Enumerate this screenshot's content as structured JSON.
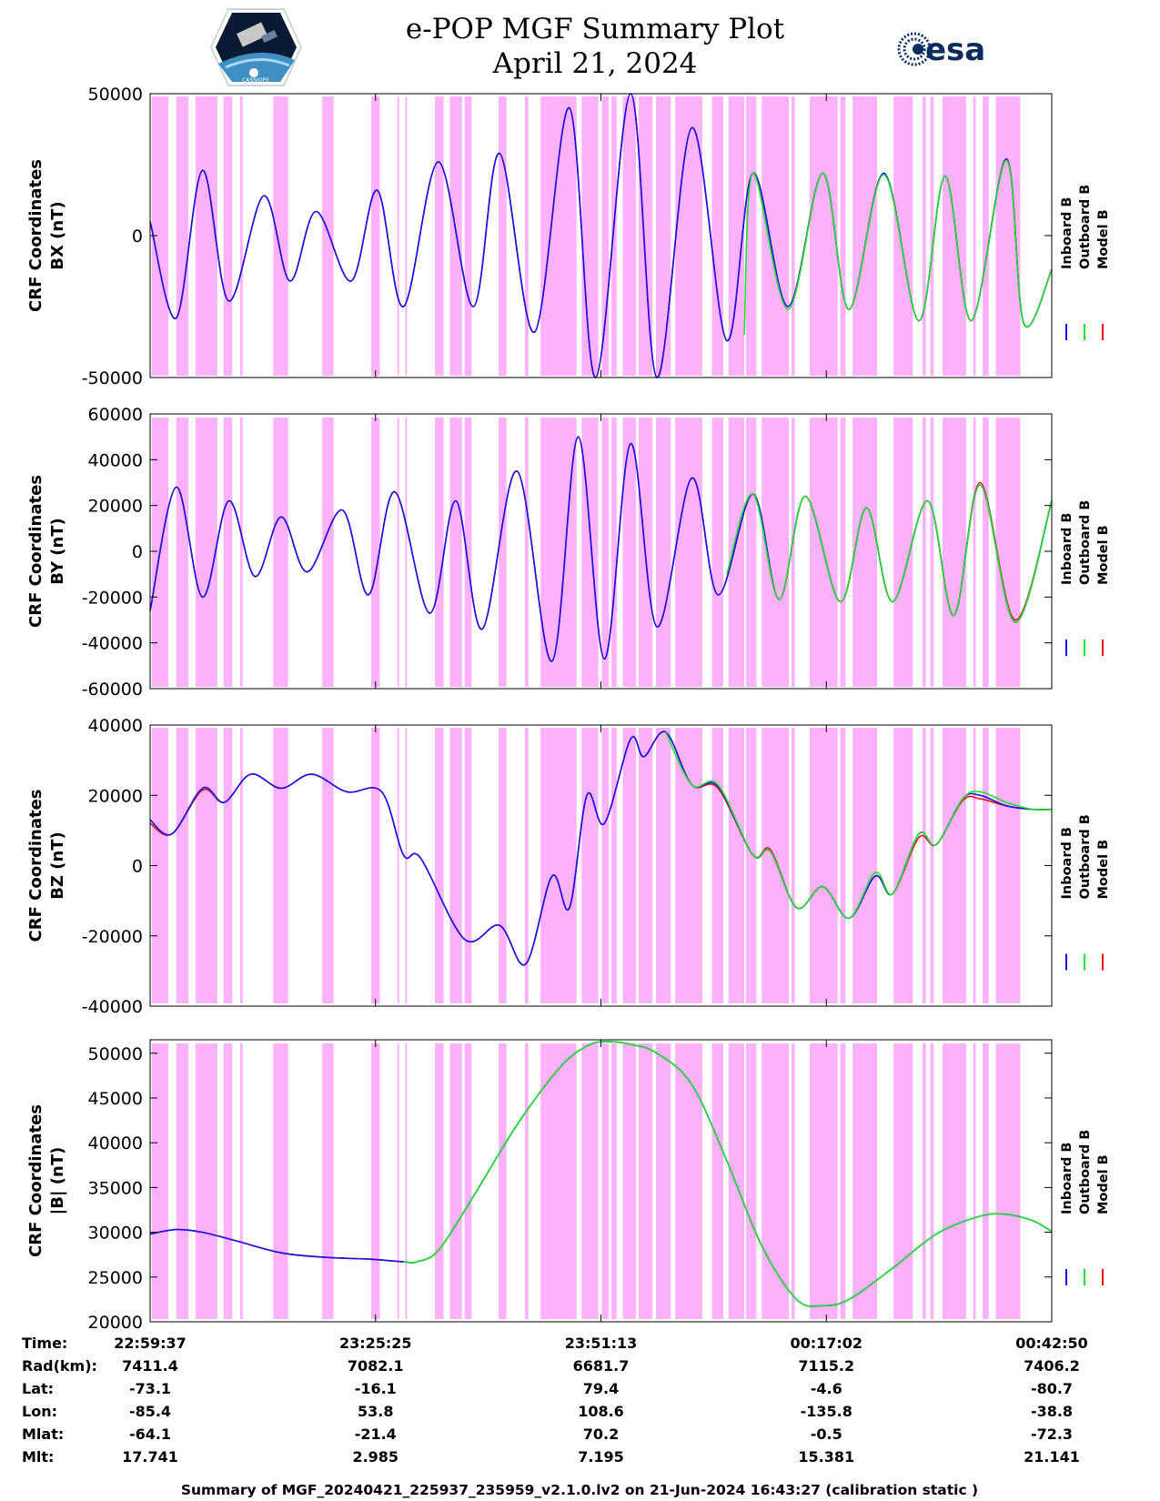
{
  "header": {
    "title": "e-POP MGF Summary Plot",
    "date": "April 21, 2024",
    "left_logo_text": "CASSIOPE",
    "right_logo_text": "esa"
  },
  "colors": {
    "shade": "#fdb2fb",
    "inboard": "#1010ee",
    "outboard": "#1ee02a",
    "model": "#ee1010"
  },
  "legend": {
    "labels": [
      "Inboard B",
      "Outboard B",
      "Model B"
    ],
    "series_colors": [
      "#1010ee",
      "#1ee02a",
      "#ee1010"
    ]
  },
  "chart_data": [
    {
      "type": "line",
      "ylabel": "CRF Coordinates\nBX (nT)",
      "ylim": [
        -50000,
        50000
      ],
      "yticks": [
        -50000,
        0,
        50000
      ],
      "x_range_minutes": [
        0,
        103.2
      ],
      "series": [
        {
          "name": "Inboard B",
          "color": "#1010ee",
          "x": [
            0,
            3,
            6,
            9,
            13,
            16,
            19,
            23,
            26,
            29,
            33,
            37,
            40,
            44,
            48,
            51,
            55,
            58,
            62,
            66,
            69,
            73,
            77,
            80,
            84,
            88,
            91,
            94,
            98,
            100,
            103.2
          ],
          "y": [
            5000,
            -29000,
            23000,
            -23000,
            14000,
            -16000,
            8500,
            -16000,
            16000,
            -25000,
            26000,
            -25000,
            29000,
            -34000,
            45000,
            -50000,
            50000,
            -50000,
            38000,
            -37000,
            22000,
            -25000,
            22000,
            -26000,
            22000,
            -30000,
            21000,
            -30000,
            27000,
            -31000,
            -12000
          ]
        },
        {
          "name": "Outboard B",
          "color": "#1ee02a",
          "x": [
            68,
            69,
            73,
            77,
            80,
            84,
            88,
            91,
            94,
            98,
            100,
            103.2
          ],
          "y": [
            -35000,
            22000,
            -26000,
            22000,
            -26000,
            21500,
            -30000,
            21000,
            -30000,
            26500,
            -31000,
            -12000
          ]
        },
        {
          "name": "Model B",
          "color": "#ee1010",
          "x": [
            0,
            3,
            6,
            9,
            13,
            16,
            19,
            23,
            26,
            29,
            33,
            37,
            40,
            44,
            48,
            51,
            55,
            58,
            62,
            66,
            69,
            73,
            77,
            80,
            84,
            88,
            91,
            94,
            98,
            100,
            103.2
          ],
          "y": [
            5000,
            -29000,
            23000,
            -23000,
            14000,
            -16000,
            8500,
            -16000,
            16000,
            -25000,
            26000,
            -25000,
            29000,
            -34000,
            45000,
            -50000,
            50000,
            -50000,
            38000,
            -37000,
            22000,
            -25000,
            22000,
            -26000,
            22000,
            -30000,
            21000,
            -30000,
            27000,
            -31000,
            -12000
          ]
        }
      ]
    },
    {
      "type": "line",
      "ylabel": "CRF Coordinates\nBY (nT)",
      "ylim": [
        -60000,
        60000
      ],
      "yticks": [
        -60000,
        -40000,
        -20000,
        0,
        20000,
        40000,
        60000
      ],
      "x_range_minutes": [
        0,
        103.2
      ],
      "series": [
        {
          "name": "Inboard B",
          "color": "#1010ee",
          "x": [
            0,
            3,
            6,
            9,
            12,
            15,
            18,
            22,
            25,
            28,
            32,
            35,
            38,
            42,
            46,
            49,
            52,
            55,
            58,
            62,
            65,
            69,
            72,
            75,
            79,
            82,
            85,
            89,
            92,
            95,
            99,
            103.2
          ],
          "y": [
            -26000,
            28000,
            -20000,
            22000,
            -11000,
            15000,
            -9000,
            18000,
            -19000,
            26000,
            -27000,
            22000,
            -34000,
            35000,
            -48000,
            50000,
            -47000,
            47000,
            -33000,
            32000,
            -19000,
            25000,
            -21000,
            24000,
            -22000,
            19000,
            -22000,
            22000,
            -28000,
            29000,
            -31000,
            22000
          ]
        },
        {
          "name": "Outboard B",
          "color": "#1ee02a",
          "x": [
            66,
            69,
            72,
            75,
            79,
            82,
            85,
            89,
            92,
            95,
            99,
            103.2
          ],
          "y": [
            -10000,
            25000,
            -21000,
            24000,
            -22000,
            19000,
            -22000,
            22000,
            -28000,
            29000,
            -31000,
            22000
          ]
        },
        {
          "name": "Model B",
          "color": "#ee1010",
          "x": [
            0,
            3,
            6,
            9,
            12,
            15,
            18,
            22,
            25,
            28,
            32,
            35,
            38,
            42,
            46,
            49,
            52,
            55,
            58,
            62,
            65,
            69,
            72,
            75,
            79,
            82,
            85,
            89,
            92,
            95,
            99,
            103.2
          ],
          "y": [
            -26000,
            28000,
            -20000,
            22000,
            -11000,
            15000,
            -9000,
            18000,
            -19000,
            26000,
            -27000,
            22000,
            -34000,
            35000,
            -48000,
            50000,
            -47000,
            47000,
            -33000,
            32000,
            -19000,
            25000,
            -21000,
            24000,
            -22000,
            19000,
            -22000,
            22000,
            -28000,
            30000,
            -30000,
            22000
          ]
        }
      ]
    },
    {
      "type": "line",
      "ylabel": "CRF Coordinates\nBZ (nT)",
      "ylim": [
        -40000,
        40000
      ],
      "yticks": [
        -40000,
        -20000,
        0,
        20000,
        40000
      ],
      "x_range_minutes": [
        0,
        103.2
      ],
      "series": [
        {
          "name": "Inboard B",
          "color": "#1010ee",
          "x": [
            0,
            2.5,
            6,
            8.5,
            11.5,
            15,
            18.5,
            22.5,
            26.5,
            29,
            31,
            36,
            40,
            43,
            46,
            48,
            50,
            52,
            55,
            56.5,
            59,
            62,
            65,
            69,
            71,
            74,
            77,
            80,
            83,
            85,
            88,
            90,
            93,
            95,
            98,
            101,
            103.2
          ],
          "y": [
            13000,
            9000,
            22000,
            18000,
            26000,
            22000,
            26000,
            21000,
            21000,
            3000,
            2000,
            -21000,
            -17000,
            -28000,
            -3000,
            -12000,
            20000,
            12000,
            36000,
            31000,
            38000,
            23000,
            22500,
            3000,
            4000,
            -12000,
            -6000,
            -15000,
            -3000,
            -8000,
            9000,
            6000,
            19000,
            20000,
            17000,
            16000,
            16000
          ]
        },
        {
          "name": "Outboard B",
          "color": "#1ee02a",
          "x": [
            59,
            62,
            65,
            69,
            71,
            74,
            77,
            80,
            83,
            85,
            88,
            90,
            93,
            95,
            98,
            101,
            103.2
          ],
          "y": [
            38000,
            23000,
            23000,
            3000,
            4000,
            -12000,
            -6000,
            -15000,
            -2000,
            -8000,
            9000,
            6000,
            19000,
            21000,
            18000,
            16000,
            16000
          ]
        },
        {
          "name": "Model B",
          "color": "#ee1010",
          "x": [
            0,
            2.5,
            6,
            8.5,
            11.5,
            15,
            18.5,
            22.5,
            26.5,
            29,
            31,
            36,
            40,
            43,
            46,
            48,
            50,
            52,
            55,
            56.5,
            59,
            62,
            65,
            69,
            71,
            74,
            77,
            80,
            83,
            85,
            88,
            90,
            93,
            95,
            98,
            101,
            103.2
          ],
          "y": [
            12000,
            9000,
            21500,
            18000,
            26000,
            22000,
            26000,
            21000,
            21000,
            3000,
            2000,
            -21000,
            -17000,
            -28000,
            -3000,
            -12000,
            20000,
            12000,
            36000,
            31000,
            38000,
            23000,
            22000,
            3000,
            4500,
            -12000,
            -6000,
            -15000,
            -3000,
            -8000,
            8000,
            6000,
            18500,
            19000,
            17000,
            16000,
            16000
          ]
        }
      ]
    },
    {
      "type": "line",
      "ylabel": "CRF Coordinates\n|B| (nT)",
      "ylim": [
        20000,
        51500
      ],
      "yticks": [
        20000,
        25000,
        30000,
        35000,
        40000,
        45000,
        50000
      ],
      "x_range_minutes": [
        0,
        103.2
      ],
      "series": [
        {
          "name": "Inboard B",
          "color": "#1010ee",
          "x": [
            0,
            3,
            6,
            10,
            15,
            20,
            25,
            29,
            30.5,
            33,
            37,
            42,
            47,
            50,
            52,
            55,
            58,
            62,
            66,
            70,
            74,
            77,
            80,
            85,
            90,
            95,
            98,
            101,
            103.2
          ],
          "y": [
            29800,
            30300,
            30000,
            29000,
            27700,
            27200,
            27000,
            26700,
            26700,
            28000,
            34000,
            42000,
            48500,
            50800,
            51300,
            51000,
            50000,
            46500,
            38000,
            28500,
            22500,
            21800,
            22500,
            26000,
            29800,
            31800,
            32000,
            31300,
            30100
          ]
        },
        {
          "name": "Outboard B",
          "color": "#1ee02a",
          "x": [
            29,
            30.5,
            33,
            37,
            42,
            47,
            50,
            52,
            55,
            58,
            62,
            66,
            70,
            74,
            77,
            80,
            85,
            90,
            95,
            98,
            101,
            103.2
          ],
          "y": [
            26700,
            26700,
            28000,
            34000,
            42000,
            48500,
            50800,
            51300,
            51000,
            50000,
            46500,
            38000,
            28500,
            22500,
            21800,
            22500,
            26000,
            29800,
            31800,
            32000,
            31300,
            30100
          ]
        },
        {
          "name": "Model B",
          "color": "#ee1010",
          "x": [
            0,
            3,
            6,
            10,
            15,
            20,
            25,
            29
          ],
          "y": [
            29800,
            30300,
            30000,
            29000,
            27700,
            27200,
            27000,
            26700
          ]
        }
      ]
    }
  ],
  "time_table": {
    "row_labels": [
      "Time:",
      "Rad(km):",
      "Lat:",
      "Lon:",
      "Mlat:",
      "Mlt:"
    ],
    "columns": [
      {
        "minute": 0,
        "values": [
          "22:59:37",
          "7411.4",
          "-73.1",
          "-85.4",
          "-64.1",
          "17.741"
        ]
      },
      {
        "minute": 25.8,
        "values": [
          "23:25:25",
          "7082.1",
          "-16.1",
          "53.8",
          "-21.4",
          "2.985"
        ]
      },
      {
        "minute": 51.6,
        "values": [
          "23:51:13",
          "6681.7",
          "79.4",
          "108.6",
          "70.2",
          "7.195"
        ]
      },
      {
        "minute": 77.4,
        "values": [
          "00:17:02",
          "7115.2",
          "-4.6",
          "-135.8",
          "-0.5",
          "15.381"
        ]
      },
      {
        "minute": 103.2,
        "values": [
          "00:42:50",
          "7406.2",
          "-80.7",
          "-38.8",
          "-72.3",
          "21.141"
        ]
      }
    ]
  },
  "shaded_intervals_minutes": [
    [
      0.2,
      2.1
    ],
    [
      3.0,
      4.4
    ],
    [
      5.2,
      7.7
    ],
    [
      8.4,
      9.4
    ],
    [
      10.3,
      10.6
    ],
    [
      14.1,
      15.8
    ],
    [
      19.7,
      21.0
    ],
    [
      25.3,
      26.3
    ],
    [
      28.3,
      28.5
    ],
    [
      29.2,
      29.4
    ],
    [
      32.6,
      33.6
    ],
    [
      34.3,
      35.7
    ],
    [
      36.0,
      36.8
    ],
    [
      39.9,
      40.8
    ],
    [
      42.9,
      43.3
    ],
    [
      44.7,
      48.8
    ],
    [
      49.4,
      51.3
    ],
    [
      51.7,
      52.5
    ],
    [
      52.8,
      53.4
    ],
    [
      54.1,
      55.6
    ],
    [
      55.9,
      57.5
    ],
    [
      57.9,
      59.6
    ],
    [
      60.1,
      63.2
    ],
    [
      64.3,
      65.6
    ],
    [
      66.2,
      68.0
    ],
    [
      68.2,
      69.4
    ],
    [
      70.0,
      73.1
    ],
    [
      73.4,
      73.8
    ],
    [
      75.5,
      78.7
    ],
    [
      79.0,
      79.6
    ],
    [
      80.4,
      83.2
    ],
    [
      85.1,
      87.3
    ],
    [
      88.4,
      88.8
    ],
    [
      89.3,
      89.7
    ],
    [
      90.7,
      93.4
    ],
    [
      94.2,
      94.5
    ],
    [
      95.3,
      96.0
    ],
    [
      96.8,
      99.6
    ]
  ],
  "footer": "Summary of MGF_20240421_225937_235959_v2.1.0.lv2 on 21-Jun-2024 16:43:27 (calibration static )"
}
